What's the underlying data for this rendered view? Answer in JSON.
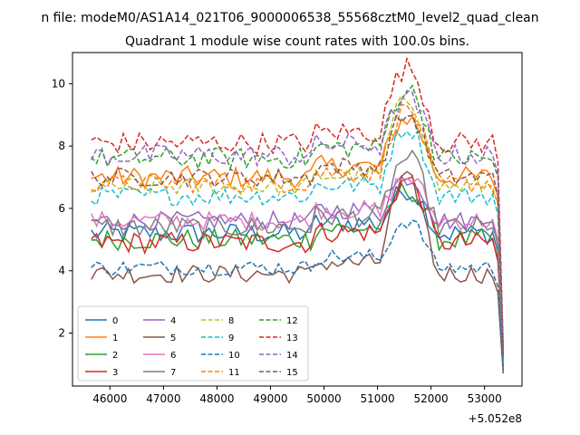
{
  "figure_title": "n file: modeM0/AS1A14_021T06_9000006538_55568cztM0_level2_quad_clean",
  "chart_data": {
    "type": "line",
    "title": "Quadrant 1 module wise count rates with 100.0s bins.",
    "xlabel": "",
    "ylabel": "",
    "x_offset_label": "+5.052e8",
    "xlim": [
      45300,
      53700
    ],
    "ylim": [
      0.3,
      11.0
    ],
    "xticks": [
      46000,
      47000,
      48000,
      49000,
      50000,
      51000,
      52000,
      53000
    ],
    "yticks": [
      2,
      4,
      6,
      8,
      10
    ],
    "x_start": 45650,
    "x_step": 100,
    "n_points": 78,
    "legend_position": "lower-left",
    "legend_ncol": 4,
    "series": [
      {
        "name": "0",
        "color": "#1f77b4",
        "style": "solid",
        "base": 5.2,
        "peak": 6.6,
        "noise": 0.35,
        "end": 0.9
      },
      {
        "name": "1",
        "color": "#ff7f0e",
        "style": "solid",
        "base": 7.0,
        "peak": 8.9,
        "noise": 0.35,
        "end": 1.1
      },
      {
        "name": "2",
        "color": "#2ca02c",
        "style": "solid",
        "base": 5.0,
        "peak": 6.6,
        "noise": 0.35,
        "end": 1.2
      },
      {
        "name": "3",
        "color": "#d62728",
        "style": "solid",
        "base": 4.9,
        "peak": 6.9,
        "noise": 0.35,
        "end": 1.4
      },
      {
        "name": "4",
        "color": "#9467bd",
        "style": "solid",
        "base": 5.6,
        "peak": 7.0,
        "noise": 0.3,
        "end": 1.2
      },
      {
        "name": "5",
        "color": "#8c564b",
        "style": "solid",
        "base": 3.9,
        "peak": 6.9,
        "noise": 0.3,
        "end": 0.7
      },
      {
        "name": "6",
        "color": "#e377c2",
        "style": "solid",
        "base": 5.6,
        "peak": 7.0,
        "noise": 0.3,
        "end": 1.3
      },
      {
        "name": "7",
        "color": "#7f7f7f",
        "style": "solid",
        "base": 5.4,
        "peak": 7.6,
        "noise": 0.35,
        "end": 1.1
      },
      {
        "name": "8",
        "color": "#bcbd22",
        "style": "dashed",
        "base": 6.7,
        "peak": 9.5,
        "noise": 0.3,
        "end": 1.3
      },
      {
        "name": "9",
        "color": "#17becf",
        "style": "dashed",
        "base": 6.4,
        "peak": 8.6,
        "noise": 0.3,
        "end": 1.2
      },
      {
        "name": "10",
        "color": "#1f77b4",
        "style": "dashed",
        "base": 4.1,
        "peak": 5.6,
        "noise": 0.25,
        "end": 0.8
      },
      {
        "name": "11",
        "color": "#ff7f0e",
        "style": "dashed",
        "base": 6.8,
        "peak": 9.2,
        "noise": 0.3,
        "end": 1.3
      },
      {
        "name": "12",
        "color": "#2ca02c",
        "style": "dashed",
        "base": 7.6,
        "peak": 9.8,
        "noise": 0.35,
        "end": 1.5
      },
      {
        "name": "13",
        "color": "#d62728",
        "style": "dashed",
        "base": 8.1,
        "peak": 10.5,
        "noise": 0.35,
        "end": 1.6
      },
      {
        "name": "14",
        "color": "#9467bd",
        "style": "dashed",
        "base": 7.7,
        "peak": 9.5,
        "noise": 0.35,
        "end": 1.4
      },
      {
        "name": "15",
        "color": "#8c564b",
        "style": "dashed",
        "base": 7.0,
        "peak": 9.0,
        "noise": 0.3,
        "end": 1.3
      }
    ]
  }
}
